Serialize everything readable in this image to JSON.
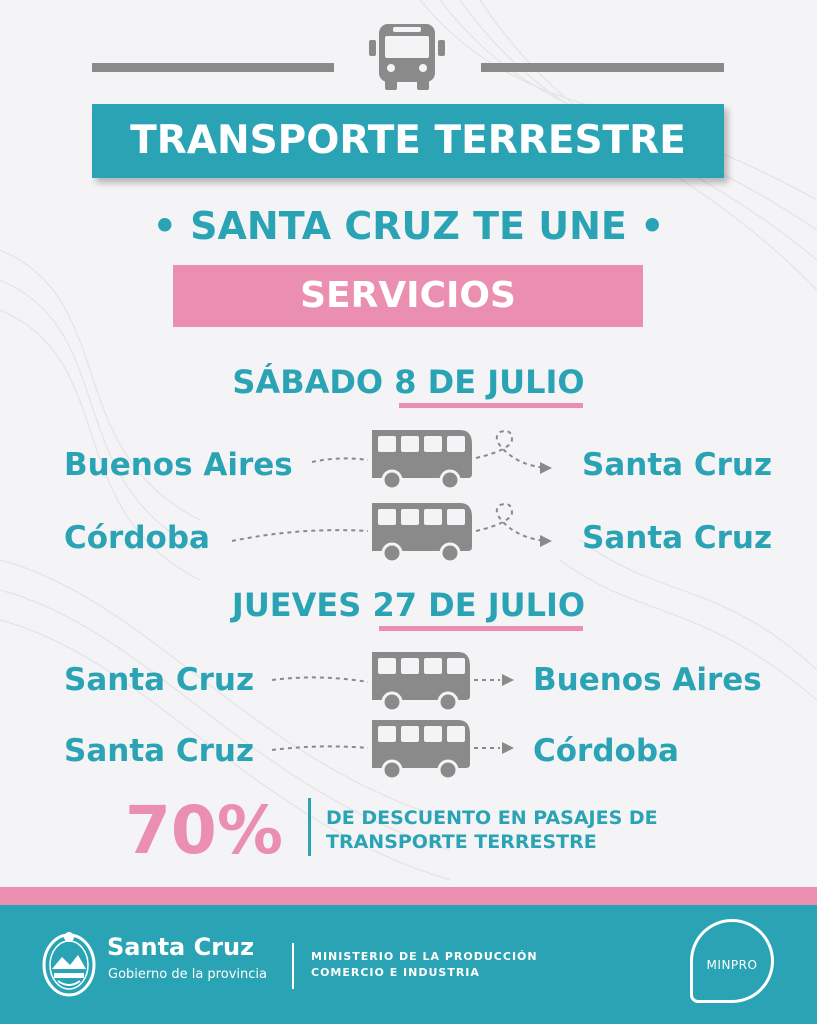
{
  "header": {
    "title": "TRANSPORTE TERRESTRE",
    "tagline": "• SANTA CRUZ TE UNE •",
    "section": "SERVICIOS"
  },
  "schedule": [
    {
      "day": "SÁBADO 8 DE JULIO",
      "routes": [
        {
          "from": "Buenos Aires",
          "to": "Santa Cruz"
        },
        {
          "from": "Córdoba",
          "to": "Santa Cruz"
        }
      ]
    },
    {
      "day": "JUEVES 27 DE JULIO",
      "routes": [
        {
          "from": "Santa Cruz",
          "to": "Buenos Aires"
        },
        {
          "from": "Santa Cruz",
          "to": "Córdoba"
        }
      ]
    }
  ],
  "discount": {
    "value": "70%",
    "line1": "DE DESCUENTO EN PASAJES DE",
    "line2": "TRANSPORTE TERRESTRE"
  },
  "footer": {
    "brand": "Santa Cruz",
    "brand_sub": "Gobierno de la provincia",
    "ministry_line1": "MINISTERIO DE LA PRODUCCIÓN",
    "ministry_line2": "COMERCIO E INDUSTRIA",
    "logo_text": "MINPRO"
  },
  "icons": {
    "top": "bus-front-icon",
    "route": "bus-side-icon",
    "seal": "provincial-seal-icon"
  },
  "colors": {
    "teal": "#2aa3b5",
    "pink": "#ea8fb0",
    "gray": "#8a8a8a",
    "background": "#f4f4f6"
  }
}
